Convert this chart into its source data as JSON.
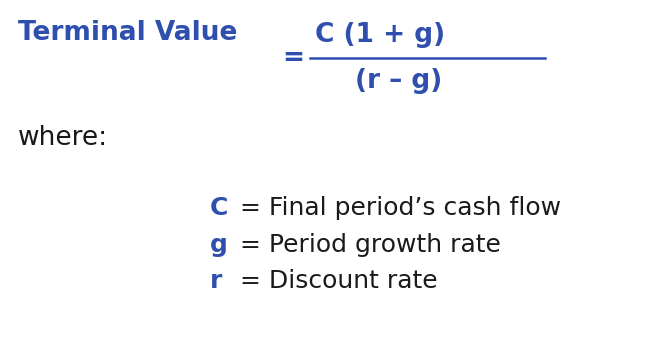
{
  "background_color": "#ffffff",
  "blue_color": "#2E4FAE",
  "black_color": "#1a1a1a",
  "terminal_value_label": "Terminal Value",
  "equals_sign": "=",
  "numerator": "C (1 + g)",
  "denominator": "(r – g)",
  "where_text": "where:",
  "line1_bold": "C",
  "line1_rest": " = Final period’s cash flow",
  "line2_bold": "g",
  "line2_rest": " = Period growth rate",
  "line3_bold": "r",
  "line3_rest": " = Discount rate",
  "fig_width": 6.59,
  "fig_height": 3.63,
  "dpi": 100,
  "tv_fontsize": 19,
  "formula_fontsize": 19,
  "where_fontsize": 19,
  "def_fontsize": 18
}
